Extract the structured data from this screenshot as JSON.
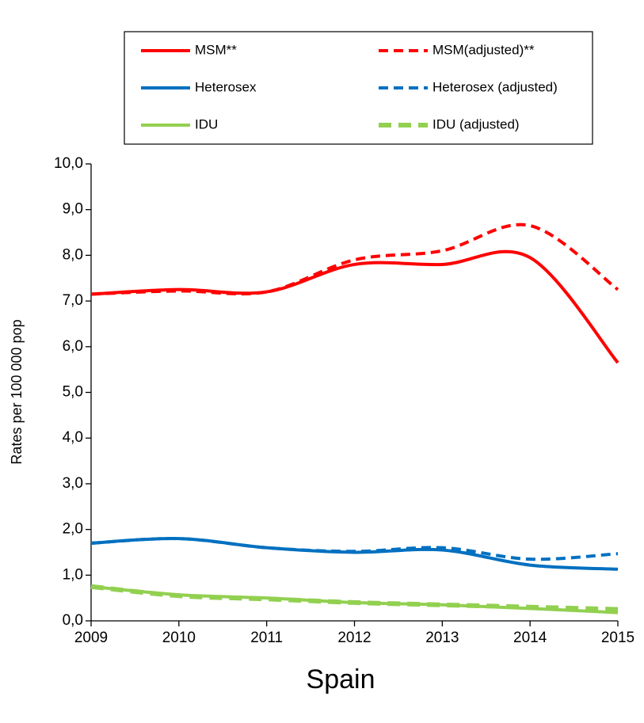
{
  "chart_data": {
    "type": "line",
    "title": "Spain",
    "ylabel": "Rates per 100 000 pop",
    "x": [
      2009,
      2010,
      2011,
      2012,
      2013,
      2014,
      2015
    ],
    "series": [
      {
        "name": "MSM**",
        "color": "#ff0000",
        "dashed": false,
        "values": [
          7.15,
          7.25,
          7.2,
          7.8,
          7.8,
          7.95,
          5.65
        ]
      },
      {
        "name": "MSM(adjusted)**",
        "color": "#ff0000",
        "dashed": true,
        "values": [
          7.15,
          7.22,
          7.2,
          7.9,
          8.1,
          8.65,
          7.25
        ]
      },
      {
        "name": "Heterosex",
        "color": "#0070c0",
        "dashed": false,
        "values": [
          1.7,
          1.8,
          1.6,
          1.5,
          1.55,
          1.22,
          1.13
        ]
      },
      {
        "name": "Heterosex (adjusted)",
        "color": "#0070c0",
        "dashed": true,
        "values": [
          1.7,
          1.8,
          1.6,
          1.52,
          1.6,
          1.35,
          1.47
        ]
      },
      {
        "name": "IDU",
        "color": "#92d050",
        "dashed": false,
        "values": [
          0.75,
          0.57,
          0.5,
          0.4,
          0.35,
          0.27,
          0.18
        ]
      },
      {
        "name": "IDU (adjusted)",
        "color": "#92d050",
        "dashed": true,
        "values": [
          0.75,
          0.55,
          0.48,
          0.4,
          0.35,
          0.3,
          0.25
        ]
      }
    ],
    "xlim": [
      2009,
      2015
    ],
    "xticks": [
      2009,
      2010,
      2011,
      2012,
      2013,
      2014,
      2015
    ],
    "ylim": [
      0,
      10
    ],
    "yticks": [
      {
        "value": 0,
        "label": "0,0"
      },
      {
        "value": 1,
        "label": "1,0"
      },
      {
        "value": 2,
        "label": "2,0"
      },
      {
        "value": 3,
        "label": "3,0"
      },
      {
        "value": 4,
        "label": "4,0"
      },
      {
        "value": 5,
        "label": "5,0"
      },
      {
        "value": 6,
        "label": "6,0"
      },
      {
        "value": 7,
        "label": "7,0"
      },
      {
        "value": 8,
        "label": "8,0"
      },
      {
        "value": 9,
        "label": "9,0"
      },
      {
        "value": 10,
        "label": "10,0"
      }
    ],
    "grid": false,
    "legend": "top"
  }
}
